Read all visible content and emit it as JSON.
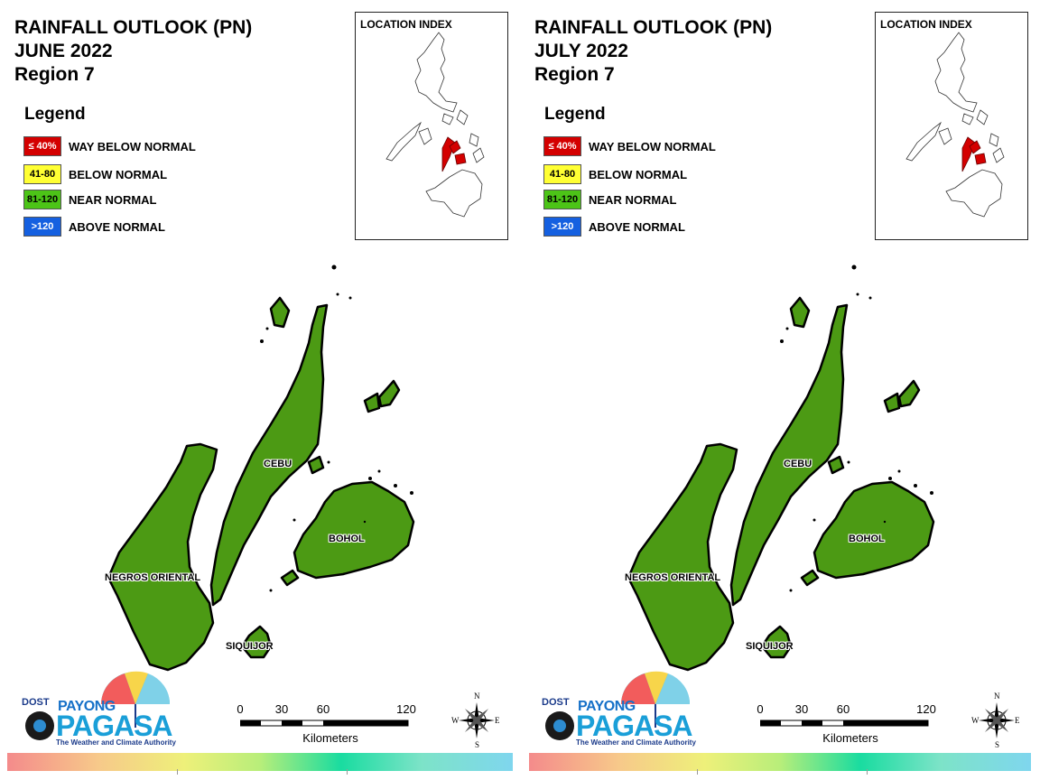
{
  "panels": [
    {
      "title_line1": "RAINFALL OUTLOOK (PN)",
      "month": "JUNE 2022",
      "region": "Region 7"
    },
    {
      "title_line1": "RAINFALL OUTLOOK (PN)",
      "month": "JULY 2022",
      "region": "Region 7"
    }
  ],
  "legend": {
    "title": "Legend",
    "items": [
      {
        "range": "≤ 40%",
        "label": "WAY BELOW NORMAL",
        "color": "#d40000",
        "text_color": "#ffffff"
      },
      {
        "range": "41-80",
        "label": "BELOW NORMAL",
        "color": "#ffff33",
        "text_color": "#000000"
      },
      {
        "range": "81-120",
        "label": "NEAR NORMAL",
        "color": "#4cc417",
        "text_color": "#000000"
      },
      {
        "range": ">120",
        "label": "ABOVE NORMAL",
        "color": "#1560e0",
        "text_color": "#ffffff"
      }
    ]
  },
  "location_index": {
    "title": "LOCATION INDEX",
    "highlight_color": "#d40000"
  },
  "provinces": [
    {
      "name": "CEBU",
      "category": "NEAR NORMAL"
    },
    {
      "name": "BOHOL",
      "category": "NEAR NORMAL"
    },
    {
      "name": "NEGROS ORIENTAL",
      "category": "NEAR NORMAL"
    },
    {
      "name": "SIQUIJOR",
      "category": "NEAR NORMAL"
    }
  ],
  "map_fill_color": "#4c9a14",
  "scale_bar": {
    "ticks": [
      "0",
      "30",
      "60",
      "120"
    ],
    "unit": "Kilometers"
  },
  "compass": {
    "n": "N",
    "s": "S",
    "e": "E",
    "w": "W",
    "icon": "compass-rose-icon"
  },
  "logo": {
    "dost": "DOST",
    "payong": "PAYONG",
    "pagasa": "PAGASA",
    "tagline": "The Weather and Climate Authority"
  }
}
